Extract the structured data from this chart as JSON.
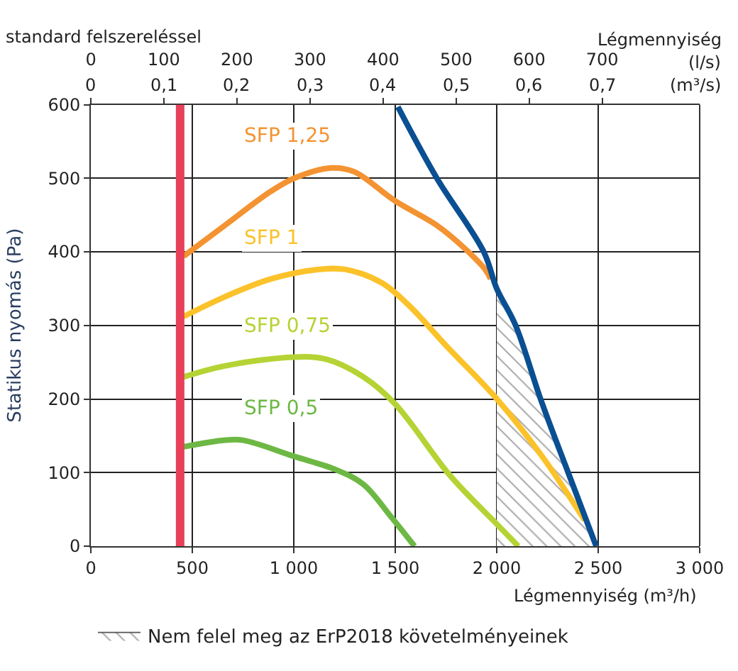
{
  "chart_data": {
    "type": "line",
    "title": "standard felszereléssel",
    "annotations": [
      "Légmennyiség",
      "(l/s)",
      "(m³/s)",
      "0",
      "0,1",
      "0,2",
      "0,3",
      "0,4",
      "0,5",
      "0,6",
      "0,7"
    ],
    "xlabel": "Légmennyiség (m³/h)",
    "ylabel": "Statikus nyomás (Pa)",
    "xlim": [
      0,
      3000
    ],
    "xticks": [
      0,
      500,
      {
        "value": 1000,
        "label": "1 000"
      },
      {
        "value": 1500,
        "label": "1 500"
      },
      {
        "value": 2000,
        "label": "2 000"
      },
      {
        "value": 2500,
        "label": "2 500"
      },
      {
        "value": 3000,
        "label": "3 000"
      }
    ],
    "ylim": [
      0,
      600
    ],
    "yticks": [
      0,
      100,
      200,
      300,
      400,
      500,
      600
    ],
    "x2lim": [
      0,
      833.33
    ],
    "x2ticks": [
      0,
      100,
      200,
      300,
      400,
      500,
      600,
      700
    ],
    "grid": true,
    "legend": "bottom left",
    "marker": "none",
    "line_style": "solid",
    "ref_lines": [
      {
        "axis": "x",
        "value": 440,
        "color": "#e8405a"
      }
    ],
    "series": [
      {
        "name": "Nem felel meg az ErP2018 követelményeinek",
        "type": "area",
        "color": "#555555",
        "x": [
          2000,
          2093,
          2216,
          2352,
          2490
        ],
        "values": [
          350,
          300,
          200,
          100,
          0
        ]
      },
      {
        "name": "SFP 1,25",
        "color": "#f39331",
        "x": [
          457,
          661,
          886,
          1002,
          1186,
          1296,
          1500,
          1705,
          1841,
          1943,
          1970
        ],
        "values": [
          394,
          436,
          482,
          500,
          514,
          509,
          469,
          436,
          405,
          376,
          363
        ]
      },
      {
        "name": "SFP 1",
        "color": "#fbc22a",
        "x": [
          457,
          661,
          886,
          1118,
          1255,
          1432,
          1568,
          1752,
          2004,
          2229,
          2413,
          2434
        ],
        "values": [
          312,
          339,
          363,
          376,
          376,
          358,
          327,
          272,
          199,
          120,
          44,
          35
        ]
      },
      {
        "name": "SFP 0,75",
        "color": "#b5d334",
        "x": [
          457,
          661,
          1002,
          1159,
          1343,
          1500,
          1773,
          2004,
          2106
        ],
        "values": [
          230,
          245,
          257,
          254,
          230,
          193,
          95,
          29,
          0
        ]
      },
      {
        "name": "SFP 0,5",
        "color": "#6db844",
        "x": [
          457,
          661,
          750,
          1002,
          1207,
          1343,
          1479,
          1595
        ],
        "values": [
          135,
          144,
          144,
          122,
          104,
          84,
          40,
          0
        ]
      },
      {
        "color": "#0a4f92",
        "x": [
          1513,
          1705,
          1936,
          2000,
          2093,
          2216,
          2352,
          2490
        ],
        "values": [
          597,
          500,
          400,
          350,
          300,
          200,
          100,
          0
        ]
      }
    ]
  }
}
